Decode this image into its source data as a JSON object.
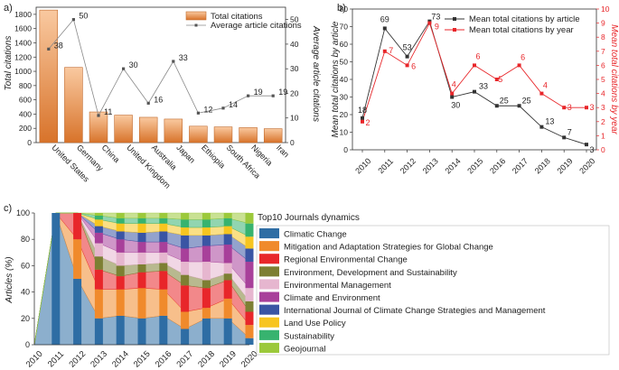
{
  "colors": {
    "bar_top": "#f9c9a0",
    "bar_bottom": "#d8732a",
    "bar_edge": "#c0692c",
    "avg_line": "#8a8a8a",
    "by_article": "#333333",
    "by_year": "#e8262a",
    "axis": "#333333"
  },
  "chart_data": [
    {
      "panel_label": "a)",
      "type": "bar",
      "categories": [
        "United States",
        "Germany",
        "China",
        "United Kingdom",
        "Australia",
        "Japan",
        "Ethiopia",
        "South Africa",
        "Nigeria",
        "Iran"
      ],
      "series": [
        {
          "name": "Total citations",
          "axis": "left",
          "values": [
            1860,
            1055,
            430,
            385,
            355,
            330,
            230,
            220,
            210,
            195
          ]
        },
        {
          "name": "Average article citations",
          "axis": "right",
          "type": "line",
          "values": [
            38,
            50,
            11,
            30,
            16,
            33,
            12,
            14,
            19,
            19
          ]
        }
      ],
      "ylabel": "Total citations",
      "y2label": "Average article citations",
      "ylim": [
        0,
        1900
      ],
      "y2lim": [
        0,
        55
      ],
      "yticks": [
        0,
        200,
        400,
        600,
        800,
        1000,
        1200,
        1400,
        1600,
        1800
      ],
      "y2ticks": [
        0,
        10,
        20,
        30,
        40,
        50
      ],
      "legend": "top-right"
    },
    {
      "panel_label": "b)",
      "type": "line",
      "x": [
        "2010",
        "2011",
        "2012",
        "2013",
        "2014",
        "2015",
        "2016",
        "2017",
        "2018",
        "2019",
        "2020"
      ],
      "series": [
        {
          "name": "Mean total citations by article",
          "axis": "left",
          "values": [
            18,
            69,
            53,
            73,
            30,
            33,
            25,
            25,
            13,
            7,
            3
          ]
        },
        {
          "name": "Mean total citations by year",
          "axis": "right",
          "values": [
            2,
            7,
            6,
            9,
            4,
            6,
            5,
            6,
            4,
            3,
            3
          ]
        }
      ],
      "ylabel": "Mean total citations by article",
      "y2label": "Mean total citations by year",
      "ylim": [
        0,
        80
      ],
      "y2lim": [
        0,
        10
      ],
      "yticks": [
        0,
        10,
        20,
        30,
        40,
        50,
        60,
        70,
        80
      ],
      "y2ticks": [
        0,
        1,
        2,
        3,
        4,
        5,
        6,
        7,
        8,
        9,
        10
      ],
      "legend": "top-right"
    },
    {
      "panel_label": "c)",
      "type": "area",
      "stacked": true,
      "percent": true,
      "legend_title": "Top10 Journals dynamics",
      "x": [
        "2010",
        "2011",
        "2012",
        "2013",
        "2014",
        "2015",
        "2016",
        "2017",
        "2018",
        "2019",
        "2020"
      ],
      "series": [
        {
          "name": "Climatic Change",
          "color": "#2e6da4",
          "values": [
            0,
            100,
            50,
            20,
            22,
            20,
            22,
            12,
            20,
            20,
            5
          ]
        },
        {
          "name": "Mitigation and Adaptation Strategies for Global Change",
          "color": "#f08a2c",
          "values": [
            0,
            0,
            30,
            22,
            20,
            23,
            20,
            13,
            8,
            15,
            10
          ]
        },
        {
          "name": "Regional Environmental Change",
          "color": "#e8262a",
          "values": [
            0,
            0,
            20,
            15,
            10,
            12,
            14,
            20,
            15,
            14,
            10
          ]
        },
        {
          "name": "Environment, Development and Sustainability",
          "color": "#7d7f33",
          "values": [
            0,
            0,
            0,
            10,
            8,
            6,
            6,
            8,
            6,
            5,
            8
          ]
        },
        {
          "name": "Environmental Management",
          "color": "#e6b6cf",
          "values": [
            0,
            0,
            0,
            10,
            10,
            9,
            8,
            10,
            14,
            8,
            10
          ]
        },
        {
          "name": "Climate and Environment",
          "color": "#a8409a",
          "values": [
            0,
            0,
            0,
            8,
            10,
            8,
            8,
            10,
            12,
            14,
            20
          ]
        },
        {
          "name": "International Journal of Climate Change Strategies and Management",
          "color": "#3a55a4",
          "values": [
            0,
            0,
            0,
            5,
            6,
            7,
            8,
            10,
            8,
            8,
            10
          ]
        },
        {
          "name": "Land Use Policy",
          "color": "#f7c520",
          "values": [
            0,
            0,
            0,
            5,
            6,
            7,
            6,
            6,
            6,
            6,
            9
          ]
        },
        {
          "name": "Sustainability",
          "color": "#37b36f",
          "values": [
            0,
            0,
            0,
            3,
            4,
            4,
            4,
            6,
            6,
            6,
            10
          ]
        },
        {
          "name": "Geojournal",
          "color": "#9cc93b",
          "values": [
            0,
            0,
            0,
            2,
            4,
            4,
            4,
            5,
            5,
            4,
            8
          ]
        }
      ],
      "ylabel": "Articles (%)",
      "ylim": [
        0,
        100
      ],
      "yticks": [
        0,
        20,
        40,
        60,
        80,
        100
      ],
      "legend": "right"
    }
  ]
}
